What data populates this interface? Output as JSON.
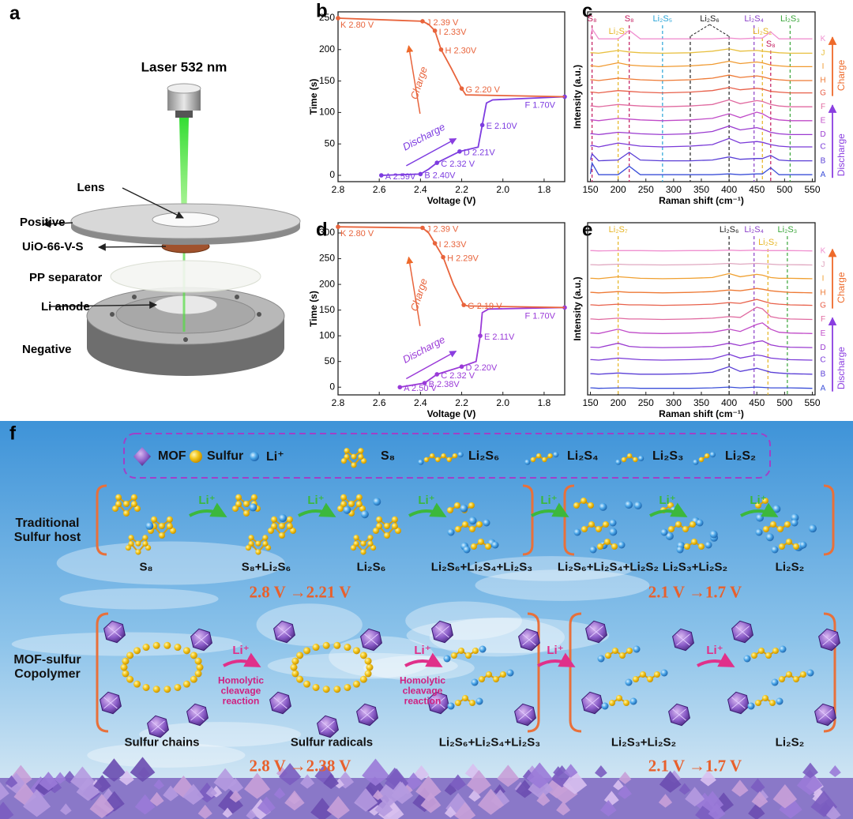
{
  "panel_labels": [
    "a",
    "b",
    "c",
    "d",
    "e",
    "f"
  ],
  "setup": {
    "title": "Laser 532 nm",
    "parts": [
      "Lens",
      "Positive",
      "UiO-66-V-S",
      "PP separator",
      "Li anode",
      "Negative"
    ]
  },
  "chart_data": [
    {
      "type": "line",
      "x_label": "Voltage (V)",
      "y_label": "Time (s)",
      "xlim": [
        2.8,
        1.7
      ],
      "xticks": [
        2.8,
        2.6,
        2.4,
        2.2,
        {
          "value": 2,
          "label": "2.0"
        },
        1.8
      ],
      "ylim": [
        -10,
        260
      ],
      "yticks": [
        0,
        50,
        100,
        150,
        200,
        250
      ],
      "series": [
        {
          "name": "Discharge",
          "color": "#7d3ce0",
          "x": [
            2.59,
            2.4,
            2.36,
            2.32,
            2.21,
            2.12,
            2.1,
            2.08,
            2.05,
            1.7
          ],
          "values": [
            0,
            2,
            10,
            20,
            38,
            45,
            80,
            115,
            120,
            125
          ],
          "point_labels": [
            "A 2.59V",
            "B 2.40V",
            null,
            "C 2.32 V",
            "D 2.21V",
            null,
            "E 2.10V",
            null,
            null,
            "F 1.70V"
          ]
        },
        {
          "name": "Charge",
          "color": "#e8643c",
          "x": [
            1.7,
            2.18,
            2.2,
            2.25,
            2.3,
            2.33,
            2.36,
            2.39,
            2.8
          ],
          "values": [
            125,
            128,
            138,
            170,
            200,
            230,
            240,
            245,
            250
          ],
          "point_labels": [
            null,
            null,
            "G 2.20 V",
            null,
            "H 2.30V",
            "I 2.33V",
            null,
            "J 2.39 V",
            "K 2.80 V"
          ]
        }
      ]
    },
    {
      "type": "line",
      "x_label": "Raman shift (cm⁻¹)",
      "y_label": "Intensity (a.u.)",
      "xlim": [
        145,
        555
      ],
      "xticks": [
        150,
        200,
        250,
        300,
        350,
        400,
        450,
        500,
        550
      ],
      "ylim": [
        0,
        11
      ],
      "x": [
        150,
        153,
        165,
        200,
        220,
        240,
        280,
        330,
        370,
        400,
        420,
        450,
        460,
        475,
        490,
        510,
        550
      ],
      "series": [
        {
          "name": "A",
          "color": "#3b4fd8",
          "values": [
            0.5,
            1.2,
            0.45,
            0.45,
            1.0,
            0.45,
            0.45,
            0.45,
            0.45,
            0.5,
            0.45,
            0.5,
            0.5,
            0.9,
            0.45,
            0.45,
            0.45
          ]
        },
        {
          "name": "B",
          "color": "#5a3fd6",
          "values": [
            1.4,
            1.8,
            1.35,
            1.4,
            1.9,
            1.4,
            1.35,
            1.35,
            1.4,
            1.6,
            1.45,
            1.5,
            1.5,
            1.7,
            1.4,
            1.35,
            1.35
          ]
        },
        {
          "name": "C",
          "color": "#7a3ad8",
          "values": [
            2.3,
            2.35,
            2.25,
            2.5,
            2.4,
            2.3,
            2.25,
            2.3,
            2.4,
            2.8,
            2.5,
            2.6,
            2.55,
            2.4,
            2.3,
            2.25,
            2.25
          ]
        },
        {
          "name": "D",
          "color": "#9a3bd0",
          "values": [
            3.1,
            3.1,
            3.05,
            3.2,
            3.15,
            3.1,
            3.05,
            3.1,
            3.25,
            3.6,
            3.35,
            3.5,
            3.4,
            3.2,
            3.1,
            3.05,
            3.05
          ]
        },
        {
          "name": "E",
          "color": "#c04bc8",
          "values": [
            4.0,
            4.0,
            3.95,
            4.1,
            4.05,
            4.0,
            3.95,
            4.0,
            4.1,
            4.4,
            4.15,
            4.5,
            4.4,
            4.1,
            4.0,
            3.95,
            3.95
          ]
        },
        {
          "name": "F",
          "color": "#e06aa0",
          "values": [
            4.9,
            4.9,
            4.85,
            5.0,
            4.95,
            4.9,
            4.85,
            4.9,
            5.0,
            5.3,
            5.05,
            5.25,
            5.2,
            5.0,
            4.9,
            4.85,
            4.85
          ]
        },
        {
          "name": "G",
          "color": "#e8604a",
          "values": [
            5.8,
            5.8,
            5.75,
            5.9,
            5.85,
            5.8,
            5.75,
            5.8,
            5.9,
            6.1,
            5.95,
            6.05,
            6.0,
            5.85,
            5.8,
            5.75,
            5.75
          ]
        },
        {
          "name": "H",
          "color": "#ee7a35",
          "values": [
            6.6,
            6.6,
            6.55,
            6.7,
            6.65,
            6.6,
            6.55,
            6.6,
            6.7,
            6.9,
            6.75,
            6.85,
            6.8,
            6.65,
            6.6,
            6.55,
            6.55
          ]
        },
        {
          "name": "I",
          "color": "#f09a30",
          "values": [
            7.5,
            7.5,
            7.45,
            7.7,
            7.55,
            7.5,
            7.45,
            7.5,
            7.6,
            7.8,
            7.65,
            7.75,
            7.7,
            7.55,
            7.5,
            7.45,
            7.45
          ]
        },
        {
          "name": "J",
          "color": "#e8c040",
          "values": [
            8.35,
            8.35,
            8.32,
            8.5,
            8.4,
            8.35,
            8.32,
            8.35,
            8.45,
            8.6,
            8.45,
            8.5,
            8.45,
            8.4,
            8.35,
            8.32,
            8.32
          ]
        },
        {
          "name": "K",
          "color": "#f090d0",
          "values": [
            9.25,
            9.9,
            9.25,
            9.25,
            9.8,
            9.25,
            9.25,
            9.25,
            9.25,
            9.3,
            9.25,
            9.3,
            9.3,
            9.7,
            9.25,
            9.25,
            9.25
          ]
        }
      ],
      "markers": [
        {
          "label": "S₈",
          "x": [
            153
          ],
          "color": "#c2185b"
        },
        {
          "label": "S₈",
          "x": [
            220
          ],
          "color": "#c2185b"
        },
        {
          "label": "Li₂S₇",
          "x": [
            200
          ],
          "color": "#e6b422"
        },
        {
          "label": "Li₂S₅",
          "x": [
            280
          ],
          "color": "#2aa5d8"
        },
        {
          "label": "Li₂S₆",
          "x": [
            330,
            400
          ],
          "color": "#222222"
        },
        {
          "label": "Li₂S₄",
          "x": [
            445
          ],
          "color": "#8a3ec8"
        },
        {
          "label": "Li₂S₂",
          "x": [
            460
          ],
          "color": "#e6b422"
        },
        {
          "label": "S₈",
          "x": [
            475
          ],
          "color": "#c2185b"
        },
        {
          "label": "Li₂S₃",
          "x": [
            510
          ],
          "color": "#3aa63a"
        }
      ],
      "annotations": [
        {
          "text": "Charge",
          "color": "#ee6a2a"
        },
        {
          "text": "Discharge",
          "color": "#8a3ee0"
        }
      ]
    },
    {
      "type": "line",
      "x_label": "Voltage (V)",
      "y_label": "Time (s)",
      "xlim": [
        2.8,
        1.7
      ],
      "xticks": [
        2.8,
        2.6,
        2.4,
        2.2,
        {
          "value": 2,
          "label": "2.0"
        },
        1.8
      ],
      "ylim": [
        -15,
        320
      ],
      "yticks": [
        0,
        50,
        100,
        150,
        200,
        250,
        300
      ],
      "series": [
        {
          "name": "Discharge",
          "color": "#9a3ad8",
          "x": [
            2.5,
            2.38,
            2.32,
            2.2,
            2.13,
            2.11,
            2.1,
            2.07,
            1.7
          ],
          "values": [
            0,
            8,
            25,
            40,
            50,
            100,
            145,
            152,
            155
          ],
          "point_labels": [
            "A 2.50 V",
            "B 2.38V",
            "C 2.32 V",
            "D 2.20V",
            null,
            "E 2.11V",
            null,
            null,
            "F 1.70V"
          ]
        },
        {
          "name": "Charge",
          "color": "#e8643c",
          "x": [
            1.7,
            2.17,
            2.19,
            2.24,
            2.29,
            2.33,
            2.36,
            2.39,
            2.8
          ],
          "values": [
            155,
            158,
            160,
            200,
            253,
            280,
            300,
            310,
            312
          ],
          "point_labels": [
            null,
            null,
            "G 2.19 V",
            null,
            "H 2.29V",
            "I 2.33V",
            null,
            "J 2.39 V",
            "K 2.80 V"
          ]
        }
      ]
    },
    {
      "type": "line",
      "x_label": "Raman shift (cm⁻¹)",
      "y_label": "Intensity (a.u.)",
      "xlim": [
        145,
        555
      ],
      "xticks": [
        150,
        200,
        250,
        300,
        350,
        400,
        450,
        500,
        550
      ],
      "ylim": [
        0,
        11
      ],
      "x": [
        150,
        153,
        165,
        200,
        220,
        240,
        280,
        330,
        370,
        400,
        420,
        450,
        460,
        475,
        490,
        510,
        550
      ],
      "series": [
        {
          "name": "A",
          "color": "#3b4fd8",
          "values": [
            0.45,
            0.45,
            0.42,
            0.45,
            0.45,
            0.42,
            0.42,
            0.42,
            0.45,
            0.5,
            0.45,
            0.5,
            0.48,
            0.45,
            0.45,
            0.45,
            0.42
          ]
        },
        {
          "name": "B",
          "color": "#5a3fd6",
          "values": [
            1.35,
            1.35,
            1.32,
            1.4,
            1.35,
            1.32,
            1.32,
            1.35,
            1.45,
            1.8,
            1.5,
            1.7,
            1.6,
            1.45,
            1.4,
            1.35,
            1.32
          ]
        },
        {
          "name": "C",
          "color": "#7a3ad8",
          "values": [
            2.25,
            2.25,
            2.22,
            2.35,
            2.3,
            2.25,
            2.22,
            2.25,
            2.3,
            2.6,
            2.35,
            2.55,
            2.5,
            2.35,
            2.3,
            2.25,
            2.22
          ]
        },
        {
          "name": "D",
          "color": "#9a3bd0",
          "values": [
            3.05,
            3.05,
            3.02,
            3.3,
            3.1,
            3.05,
            3.02,
            3.05,
            3.1,
            3.3,
            3.15,
            3.4,
            3.45,
            3.2,
            3.1,
            3.05,
            3.02
          ]
        },
        {
          "name": "E",
          "color": "#c04bc8",
          "values": [
            3.95,
            3.95,
            3.92,
            4.2,
            4.0,
            3.95,
            3.92,
            3.95,
            4.0,
            4.2,
            4.05,
            4.5,
            4.6,
            4.2,
            4.0,
            3.95,
            3.92
          ]
        },
        {
          "name": "F",
          "color": "#e06aa0",
          "values": [
            4.85,
            4.85,
            4.82,
            4.9,
            4.85,
            4.85,
            4.82,
            4.85,
            4.9,
            5.0,
            4.95,
            5.6,
            5.5,
            5.0,
            4.9,
            4.85,
            4.82
          ]
        },
        {
          "name": "G",
          "color": "#e8604a",
          "values": [
            5.75,
            5.75,
            5.72,
            5.8,
            5.75,
            5.75,
            5.72,
            5.75,
            5.8,
            5.9,
            5.85,
            6.1,
            6.0,
            5.85,
            5.8,
            5.75,
            5.72
          ]
        },
        {
          "name": "H",
          "color": "#ee7a35",
          "values": [
            6.55,
            6.55,
            6.52,
            6.6,
            6.55,
            6.55,
            6.52,
            6.55,
            6.6,
            6.7,
            6.65,
            6.8,
            6.75,
            6.65,
            6.6,
            6.55,
            6.52
          ]
        },
        {
          "name": "I",
          "color": "#f0a030",
          "values": [
            7.45,
            7.45,
            7.42,
            7.55,
            7.5,
            7.45,
            7.42,
            7.45,
            7.5,
            7.75,
            7.55,
            7.7,
            7.65,
            7.5,
            7.45,
            7.45,
            7.42
          ]
        },
        {
          "name": "J",
          "color": "#e0a8c0",
          "values": [
            8.32,
            8.32,
            8.3,
            8.35,
            8.32,
            8.32,
            8.3,
            8.32,
            8.35,
            8.4,
            8.35,
            8.4,
            8.38,
            8.35,
            8.32,
            8.32,
            8.3
          ]
        },
        {
          "name": "K",
          "color": "#f090d0",
          "values": [
            9.22,
            9.22,
            9.2,
            9.22,
            9.22,
            9.22,
            9.2,
            9.22,
            9.22,
            9.25,
            9.22,
            9.25,
            9.22,
            9.22,
            9.22,
            9.22,
            9.2
          ]
        }
      ],
      "markers": [
        {
          "label": "Li₂S₇",
          "x": [
            200
          ],
          "color": "#e6b422"
        },
        {
          "label": "Li₂S₆",
          "x": [
            400
          ],
          "color": "#222222"
        },
        {
          "label": "Li₂S₄",
          "x": [
            445
          ],
          "color": "#8a3ec8"
        },
        {
          "label": "Li₂S₂",
          "x": [
            470
          ],
          "color": "#e6b422"
        },
        {
          "label": "Li₂S₃",
          "x": [
            505
          ],
          "color": "#3aa63a"
        }
      ],
      "annotations": [
        {
          "text": "Charge",
          "color": "#ee6a2a"
        },
        {
          "text": "Discharge",
          "color": "#8a3ee0"
        }
      ]
    }
  ],
  "scheme": {
    "legend": [
      "MOF",
      "Sulfur",
      "Li⁺",
      "S₈",
      "Li₂S₆",
      "Li₂S₄",
      "Li₂S₃",
      "Li₂S₂"
    ],
    "rows": [
      {
        "label": "Traditional Sulfur host",
        "stages": [
          "S₈",
          "S₈+Li₂S₆",
          "Li₂S₆",
          "Li₂S₆+Li₂S₄+Li₂S₃",
          "Li₂S₆+Li₂S₄+Li₂S₂",
          "Li₂S₃+Li₂S₂",
          "Li₂S₂"
        ],
        "steps": [
          "Li⁺",
          "Li⁺",
          "Li⁺",
          "Li⁺",
          "Li⁺",
          "Li⁺"
        ],
        "voltages": [
          "2.8 V →2.21 V",
          "2.1 V →1.7 V"
        ]
      },
      {
        "label": "MOF-sulfur Copolymer",
        "stages": [
          "Sulfur chains",
          "Sulfur radicals",
          "Li₂S₆+Li₂S₄+Li₂S₃",
          "Li₂S₃+Li₂S₂",
          "Li₂S₂"
        ],
        "steps": [
          "Li⁺",
          "Li⁺",
          "Li⁺",
          "Li⁺"
        ],
        "step_notes": [
          "Homolytic cleavage reaction",
          "Homolytic cleavage reaction"
        ],
        "voltages": [
          "2.8 V →2.38 V",
          "2.1 V →1.7 V"
        ]
      }
    ]
  }
}
